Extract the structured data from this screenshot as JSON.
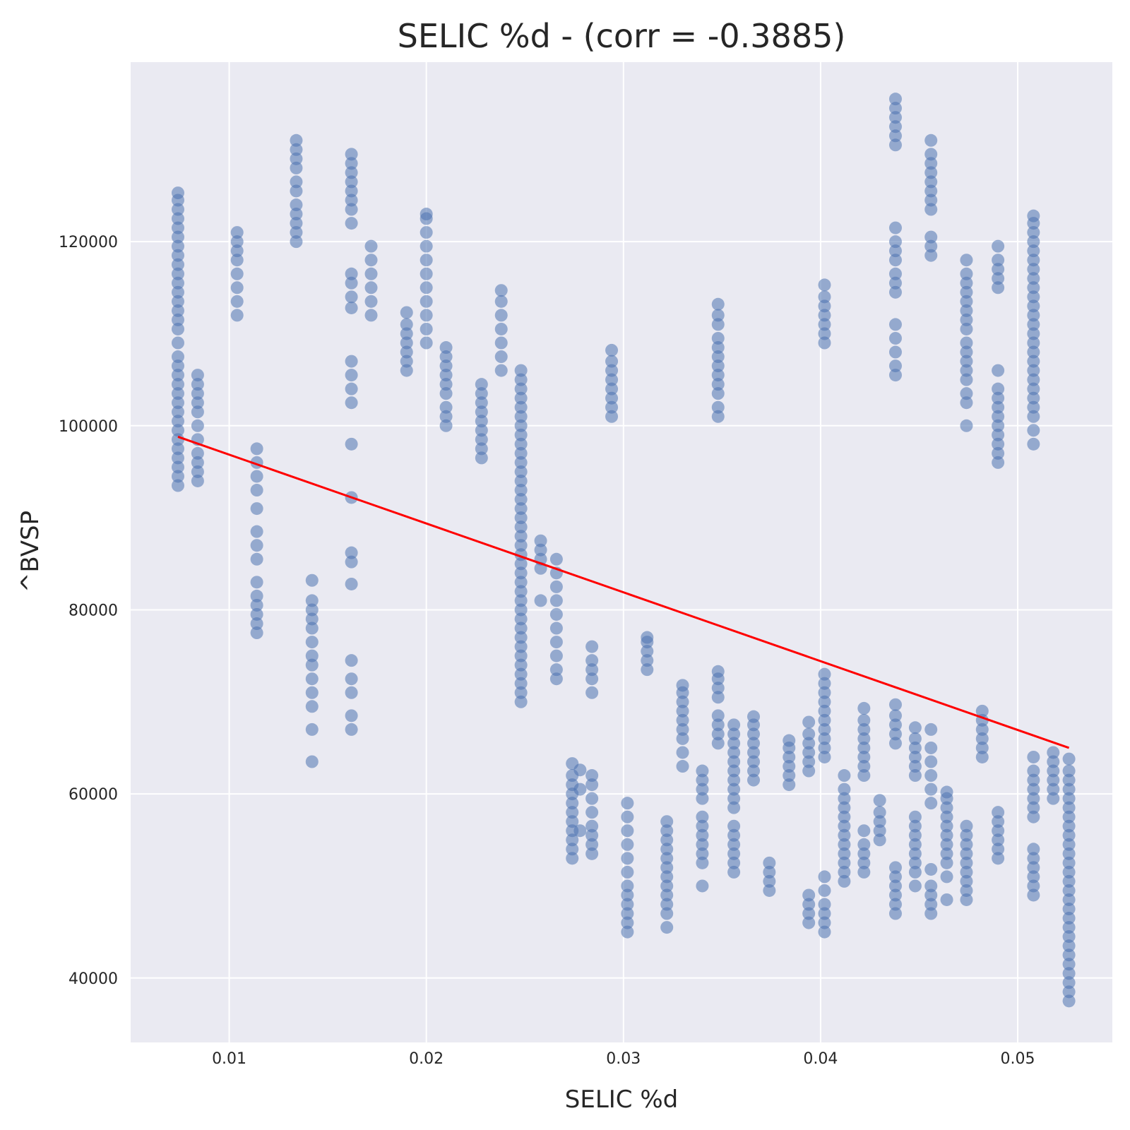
{
  "chart_data": {
    "type": "scatter",
    "title": "SELIC %d - (corr = -0.3885)",
    "xlabel": "SELIC %d",
    "ylabel": "^BVSP",
    "xlim": [
      0.005,
      0.0548
    ],
    "ylim": [
      33000,
      139500
    ],
    "xticks": [
      0.01,
      0.02,
      0.03,
      0.04,
      0.05
    ],
    "xtick_labels": [
      "0.01",
      "0.02",
      "0.03",
      "0.04",
      "0.05"
    ],
    "yticks": [
      40000,
      60000,
      80000,
      100000,
      120000
    ],
    "ytick_labels": [
      "40000",
      "60000",
      "80000",
      "100000",
      "120000"
    ],
    "grid": true,
    "colors": {
      "background": "#eaeaf2",
      "grid": "#ffffff",
      "points": "#4c72b0",
      "fit_line": "#ff0000"
    },
    "trend_line": {
      "x": [
        0.0074,
        0.0526
      ],
      "y": [
        98800,
        65000
      ]
    },
    "point_clusters": [
      {
        "x": 0.0074,
        "y": [
          93500,
          94500,
          95500,
          96500,
          97500,
          98500,
          99500,
          100500,
          101500,
          102500,
          103500,
          104500,
          105500,
          106500,
          107500,
          109000,
          110500,
          111500,
          112500,
          113500,
          114500,
          115500,
          116500,
          117500,
          118500,
          119500,
          120500,
          121500,
          122500,
          123500,
          124500,
          125300
        ]
      },
      {
        "x": 0.0084,
        "y": [
          94000,
          95000,
          96000,
          97000,
          98500,
          100000,
          101500,
          102500,
          103500,
          104500,
          105500
        ]
      },
      {
        "x": 0.0104,
        "y": [
          112000,
          113500,
          115000,
          116500,
          118000,
          119000,
          120000,
          121000
        ]
      },
      {
        "x": 0.0114,
        "y": [
          77500,
          78500,
          79500,
          80500,
          81500,
          83000,
          85500,
          87000,
          88500,
          91000,
          93000,
          94500,
          96000,
          97500
        ]
      },
      {
        "x": 0.0134,
        "y": [
          120000,
          121000,
          122000,
          123000,
          124000,
          125500,
          126500,
          128000,
          129000,
          130000,
          131000
        ]
      },
      {
        "x": 0.0142,
        "y": [
          63500,
          67000,
          69500,
          71000,
          72500,
          74000,
          75000,
          76500,
          78000,
          79000,
          80000,
          81000,
          83200
        ]
      },
      {
        "x": 0.0162,
        "y": [
          67000,
          68500,
          71000,
          72500,
          74500,
          82800,
          85200,
          86200,
          92200,
          98000,
          102500,
          104000,
          105500,
          107000,
          112800,
          114000,
          115500,
          116500,
          122000,
          123500,
          124500,
          125500,
          126500,
          127500,
          128500,
          129500
        ]
      },
      {
        "x": 0.0172,
        "y": [
          112000,
          113500,
          115000,
          116500,
          118000,
          119500
        ]
      },
      {
        "x": 0.019,
        "y": [
          106000,
          107000,
          108000,
          109000,
          110000,
          111000,
          112300
        ]
      },
      {
        "x": 0.02,
        "y": [
          109000,
          110500,
          112000,
          113500,
          115000,
          116500,
          118000,
          119500,
          121000,
          122500,
          123000
        ]
      },
      {
        "x": 0.021,
        "y": [
          100000,
          101000,
          102000,
          103500,
          104500,
          105500,
          106500,
          107500,
          108500
        ]
      },
      {
        "x": 0.0228,
        "y": [
          96500,
          97500,
          98500,
          99500,
          100500,
          101500,
          102500,
          103500,
          104500
        ]
      },
      {
        "x": 0.0238,
        "y": [
          106000,
          107500,
          109000,
          110500,
          112000,
          113500,
          114700
        ]
      },
      {
        "x": 0.0248,
        "y": [
          70000,
          71000,
          72000,
          73000,
          74000,
          75000,
          76000,
          77000,
          78000,
          79000,
          80000,
          81000,
          82000,
          83000,
          84000,
          85000,
          86000,
          87000,
          88000,
          89000,
          90000,
          91000,
          92000,
          93000,
          94000,
          95000,
          96000,
          97000,
          98000,
          99000,
          100000,
          101000,
          102000,
          103000,
          104000,
          105000,
          106000
        ]
      },
      {
        "x": 0.0258,
        "y": [
          81000,
          84500,
          85500,
          86500,
          87500
        ]
      },
      {
        "x": 0.0266,
        "y": [
          72500,
          73500,
          75000,
          76500,
          78000,
          79500,
          81000,
          82500,
          84000,
          85500
        ]
      },
      {
        "x": 0.0274,
        "y": [
          53000,
          54000,
          55000,
          56000,
          57000,
          58000,
          59000,
          60000,
          61000,
          62000,
          63300
        ]
      },
      {
        "x": 0.0278,
        "y": [
          56000,
          60500,
          62600
        ]
      },
      {
        "x": 0.0284,
        "y": [
          53500,
          54500,
          55500,
          56500,
          58000,
          59500,
          61000,
          62000,
          71000,
          72500,
          73500,
          74500,
          76000
        ]
      },
      {
        "x": 0.0294,
        "y": [
          101000,
          102000,
          103000,
          104000,
          105000,
          106000,
          107000,
          108200
        ]
      },
      {
        "x": 0.0302,
        "y": [
          45000,
          46000,
          47000,
          48000,
          49000,
          50000,
          51500,
          53000,
          54500,
          56000,
          57500,
          59000
        ]
      },
      {
        "x": 0.0312,
        "y": [
          73500,
          74500,
          75500,
          76500,
          77000
        ]
      },
      {
        "x": 0.0322,
        "y": [
          45500,
          47000,
          48000,
          49000,
          50000,
          51000,
          52000,
          53000,
          54000,
          55000,
          56000,
          57000
        ]
      },
      {
        "x": 0.033,
        "y": [
          63000,
          64500,
          66000,
          67000,
          68000,
          69000,
          70000,
          71000,
          71800
        ]
      },
      {
        "x": 0.034,
        "y": [
          50000,
          52500,
          53500,
          54500,
          55500,
          56500,
          57500,
          59500,
          60500,
          61500,
          62500
        ]
      },
      {
        "x": 0.0348,
        "y": [
          65500,
          66500,
          67500,
          68500,
          70500,
          71500,
          72500,
          73300,
          101000,
          102000,
          103500,
          104500,
          105500,
          106500,
          107500,
          108500,
          109500,
          111000,
          112000,
          113200
        ]
      },
      {
        "x": 0.0356,
        "y": [
          51500,
          52500,
          53500,
          54500,
          55500,
          56500,
          58500,
          59500,
          60500,
          61500,
          62500,
          63500,
          64500,
          65500,
          66500,
          67500
        ]
      },
      {
        "x": 0.0366,
        "y": [
          61500,
          62500,
          63500,
          64500,
          65500,
          66500,
          67500,
          68400
        ]
      },
      {
        "x": 0.0374,
        "y": [
          49500,
          50500,
          51500,
          52500
        ]
      },
      {
        "x": 0.0384,
        "y": [
          61000,
          62000,
          63000,
          64000,
          65000,
          65800
        ]
      },
      {
        "x": 0.0394,
        "y": [
          46000,
          47000,
          48000,
          49000,
          62500,
          63500,
          64500,
          65500,
          66500,
          67800
        ]
      },
      {
        "x": 0.0402,
        "y": [
          45000,
          46000,
          47000,
          48000,
          49500,
          51000,
          64000,
          65000,
          66000,
          67000,
          68000,
          69000,
          70000,
          71000,
          72000,
          73000,
          109000,
          110000,
          111000,
          112000,
          113000,
          114000,
          115300
        ]
      },
      {
        "x": 0.0412,
        "y": [
          50500,
          51500,
          52500,
          53500,
          54500,
          55500,
          56500,
          57500,
          58500,
          59500,
          60500,
          62000
        ]
      },
      {
        "x": 0.0422,
        "y": [
          51500,
          52500,
          53500,
          54500,
          56000,
          62000,
          63000,
          64000,
          65000,
          66000,
          67000,
          68000,
          69300
        ]
      },
      {
        "x": 0.043,
        "y": [
          55000,
          56000,
          57000,
          58000,
          59300
        ]
      },
      {
        "x": 0.0438,
        "y": [
          47000,
          48000,
          49000,
          50000,
          51000,
          52000,
          65500,
          66500,
          67500,
          68500,
          69700,
          105500,
          106500,
          108000,
          109500,
          111000,
          114500,
          115500,
          116500,
          118000,
          119000,
          120000,
          121500,
          130500,
          131500,
          132500,
          133500,
          134500,
          135500
        ]
      },
      {
        "x": 0.0448,
        "y": [
          50000,
          51500,
          52500,
          53500,
          54500,
          55500,
          56500,
          57500,
          62000,
          63000,
          64000,
          65000,
          66000,
          67200
        ]
      },
      {
        "x": 0.0456,
        "y": [
          47000,
          48000,
          49000,
          50000,
          51800,
          59000,
          60500,
          62000,
          63500,
          65000,
          67000,
          118500,
          119500,
          120500,
          123500,
          124500,
          125500,
          126500,
          127500,
          128500,
          129500,
          131000
        ]
      },
      {
        "x": 0.0464,
        "y": [
          48500,
          51000,
          52500,
          53500,
          54500,
          55500,
          56500,
          57500,
          58500,
          59500,
          60200
        ]
      },
      {
        "x": 0.0474,
        "y": [
          48500,
          49500,
          50500,
          51500,
          52500,
          53500,
          54500,
          55500,
          56500,
          100000,
          102500,
          103500,
          105000,
          106000,
          107000,
          108000,
          109000,
          110500,
          111500,
          112500,
          113500,
          114500,
          115500,
          116500,
          118000
        ]
      },
      {
        "x": 0.0482,
        "y": [
          64000,
          65000,
          66000,
          67000,
          68000,
          69000
        ]
      },
      {
        "x": 0.049,
        "y": [
          53000,
          54000,
          55000,
          56000,
          57000,
          58000,
          96000,
          97000,
          98000,
          99000,
          100000,
          101000,
          102000,
          103000,
          104000,
          106000,
          115000,
          116000,
          117000,
          118000,
          119500
        ]
      },
      {
        "x": 0.0508,
        "y": [
          49000,
          50000,
          51000,
          52000,
          53000,
          54000,
          57500,
          58500,
          59500,
          60500,
          61500,
          62500,
          64000,
          98000,
          99500,
          101000,
          102000,
          103000,
          104000,
          105000,
          106000,
          107000,
          108000,
          109000,
          110000,
          111000,
          112000,
          113000,
          114000,
          115000,
          116000,
          117000,
          118000,
          119000,
          120000,
          121000,
          122000,
          122800
        ]
      },
      {
        "x": 0.0518,
        "y": [
          59500,
          60500,
          61500,
          62500,
          63500,
          64500
        ]
      },
      {
        "x": 0.0526,
        "y": [
          37500,
          38500,
          39500,
          40500,
          41500,
          42500,
          43500,
          44500,
          45500,
          46500,
          47500,
          48500,
          49500,
          50500,
          51500,
          52500,
          53500,
          54500,
          55500,
          56500,
          57500,
          58500,
          59500,
          60500,
          61500,
          62500,
          63800
        ]
      }
    ]
  }
}
